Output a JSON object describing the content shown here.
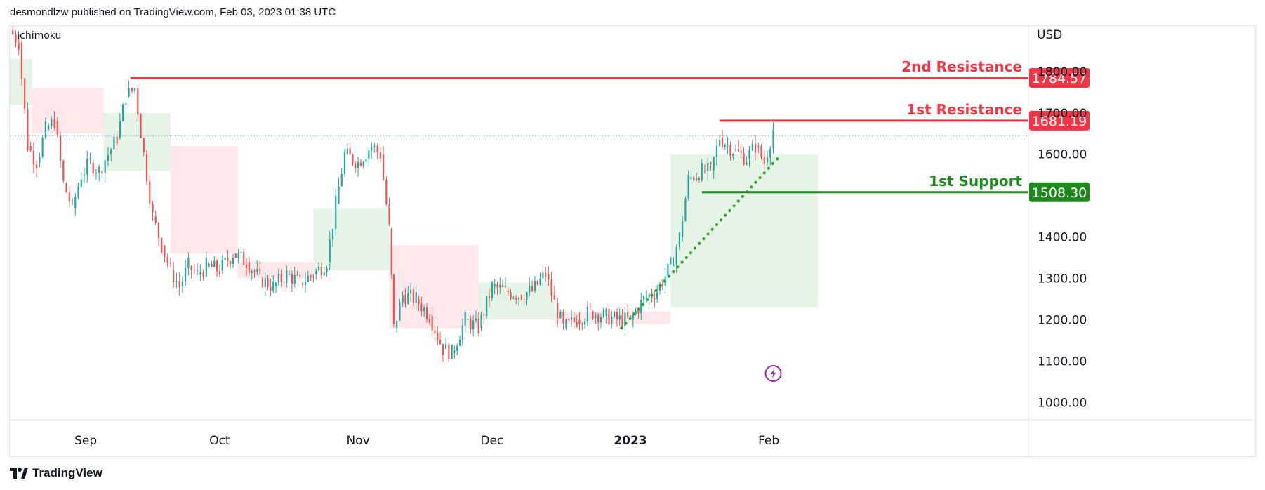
{
  "header": {
    "published_by": "desmondlzw published on TradingView.com, Feb 03, 2023 01:38 UTC"
  },
  "footer": {
    "brand": "TradingView"
  },
  "colors": {
    "up": "#26a69a",
    "down": "#ef5350",
    "resistance": "#f23645",
    "support": "#1e8a1e",
    "cloud_up": "#c8e6c9",
    "cloud_down": "#ffcdd2",
    "grid_text": "#131722",
    "purple": "#9c27b0"
  },
  "chart_data": {
    "type": "candlestick",
    "indicator_label": "Ichimoku",
    "currency": "USD",
    "y_ticks": [
      "1000.00",
      "1100.00",
      "1200.00",
      "1300.00",
      "1400.00",
      "1600.00",
      "1700.00",
      "1800.00"
    ],
    "ylim": [
      960,
      1910
    ],
    "x_ticks": [
      {
        "label": "Sep",
        "date": "2022-09-01"
      },
      {
        "label": "Oct",
        "date": "2022-10-01"
      },
      {
        "label": "Nov",
        "date": "2022-11-01"
      },
      {
        "label": "Dec",
        "date": "2022-12-01"
      },
      {
        "label": "2023",
        "date": "2023-01-01",
        "bold": true
      },
      {
        "label": "Feb",
        "date": "2023-02-01"
      }
    ],
    "xlim": [
      "2022-08-15",
      "2023-03-31"
    ],
    "price_path": [
      [
        "2022-08-15",
        1900
      ],
      [
        "2022-08-17",
        1870
      ],
      [
        "2022-08-19",
        1620
      ],
      [
        "2022-08-21",
        1580
      ],
      [
        "2022-08-23",
        1660
      ],
      [
        "2022-08-25",
        1680
      ],
      [
        "2022-08-27",
        1530
      ],
      [
        "2022-08-29",
        1470
      ],
      [
        "2022-08-31",
        1550
      ],
      [
        "2022-09-02",
        1580
      ],
      [
        "2022-09-04",
        1560
      ],
      [
        "2022-09-06",
        1600
      ],
      [
        "2022-09-08",
        1640
      ],
      [
        "2022-09-10",
        1740
      ],
      [
        "2022-09-12",
        1760
      ],
      [
        "2022-09-14",
        1600
      ],
      [
        "2022-09-16",
        1450
      ],
      [
        "2022-09-18",
        1380
      ],
      [
        "2022-09-20",
        1320
      ],
      [
        "2022-09-22",
        1280
      ],
      [
        "2022-09-24",
        1330
      ],
      [
        "2022-09-26",
        1310
      ],
      [
        "2022-09-28",
        1330
      ],
      [
        "2022-10-01",
        1320
      ],
      [
        "2022-10-04",
        1360
      ],
      [
        "2022-10-07",
        1340
      ],
      [
        "2022-10-10",
        1300
      ],
      [
        "2022-10-13",
        1280
      ],
      [
        "2022-10-16",
        1310
      ],
      [
        "2022-10-19",
        1290
      ],
      [
        "2022-10-22",
        1310
      ],
      [
        "2022-10-25",
        1340
      ],
      [
        "2022-10-27",
        1480
      ],
      [
        "2022-10-29",
        1600
      ],
      [
        "2022-11-01",
        1580
      ],
      [
        "2022-11-04",
        1620
      ],
      [
        "2022-11-06",
        1600
      ],
      [
        "2022-11-08",
        1420
      ],
      [
        "2022-11-09",
        1180
      ],
      [
        "2022-11-11",
        1260
      ],
      [
        "2022-11-14",
        1250
      ],
      [
        "2022-11-17",
        1210
      ],
      [
        "2022-11-20",
        1130
      ],
      [
        "2022-11-22",
        1120
      ],
      [
        "2022-11-25",
        1200
      ],
      [
        "2022-11-28",
        1180
      ],
      [
        "2022-12-01",
        1280
      ],
      [
        "2022-12-04",
        1270
      ],
      [
        "2022-12-07",
        1260
      ],
      [
        "2022-12-10",
        1270
      ],
      [
        "2022-12-13",
        1310
      ],
      [
        "2022-12-15",
        1240
      ],
      [
        "2022-12-17",
        1180
      ],
      [
        "2022-12-20",
        1200
      ],
      [
        "2022-12-23",
        1220
      ],
      [
        "2022-12-26",
        1210
      ],
      [
        "2022-12-29",
        1200
      ],
      [
        "2023-01-01",
        1200
      ],
      [
        "2023-01-04",
        1250
      ],
      [
        "2023-01-07",
        1270
      ],
      [
        "2023-01-10",
        1330
      ],
      [
        "2023-01-12",
        1400
      ],
      [
        "2023-01-14",
        1540
      ],
      [
        "2023-01-17",
        1560
      ],
      [
        "2023-01-19",
        1560
      ],
      [
        "2023-01-21",
        1640
      ],
      [
        "2023-01-24",
        1610
      ],
      [
        "2023-01-27",
        1590
      ],
      [
        "2023-01-29",
        1620
      ],
      [
        "2023-01-31",
        1580
      ],
      [
        "2023-02-02",
        1660
      ]
    ],
    "cloud": [
      {
        "from": "2022-08-15",
        "to": "2022-08-20",
        "top": 1830,
        "bottom": 1720,
        "bias": "up"
      },
      {
        "from": "2022-08-20",
        "to": "2022-09-05",
        "top": 1760,
        "bottom": 1650,
        "bias": "down"
      },
      {
        "from": "2022-09-05",
        "to": "2022-09-20",
        "top": 1700,
        "bottom": 1560,
        "bias": "up"
      },
      {
        "from": "2022-09-20",
        "to": "2022-10-05",
        "top": 1620,
        "bottom": 1360,
        "bias": "down"
      },
      {
        "from": "2022-10-05",
        "to": "2022-10-22",
        "top": 1340,
        "bottom": 1300,
        "bias": "down"
      },
      {
        "from": "2022-10-22",
        "to": "2022-11-08",
        "top": 1470,
        "bottom": 1320,
        "bias": "up"
      },
      {
        "from": "2022-11-08",
        "to": "2022-11-28",
        "top": 1380,
        "bottom": 1180,
        "bias": "down"
      },
      {
        "from": "2022-11-28",
        "to": "2022-12-15",
        "top": 1290,
        "bottom": 1200,
        "bias": "up"
      },
      {
        "from": "2022-12-15",
        "to": "2023-01-10",
        "top": 1220,
        "bottom": 1190,
        "bias": "down"
      },
      {
        "from": "2023-01-10",
        "to": "2023-02-12",
        "top": 1600,
        "bottom": 1230,
        "bias": "up"
      }
    ],
    "last_price_level": 1645,
    "levels": [
      {
        "name": "2nd Resistance",
        "value": 1784.57,
        "label": "1784.57",
        "type": "resistance",
        "from": "2022-09-11"
      },
      {
        "name": "1st Resistance",
        "value": 1681.19,
        "label": "1681.19",
        "type": "resistance",
        "from": "2023-01-21"
      },
      {
        "name": "1st Support",
        "value": 1508.3,
        "label": "1508.30",
        "type": "support",
        "from": "2023-01-17"
      }
    ],
    "trendline": {
      "from": [
        "2022-12-30",
        1180
      ],
      "to": [
        "2023-02-03",
        1590
      ],
      "style": "dotted"
    }
  }
}
